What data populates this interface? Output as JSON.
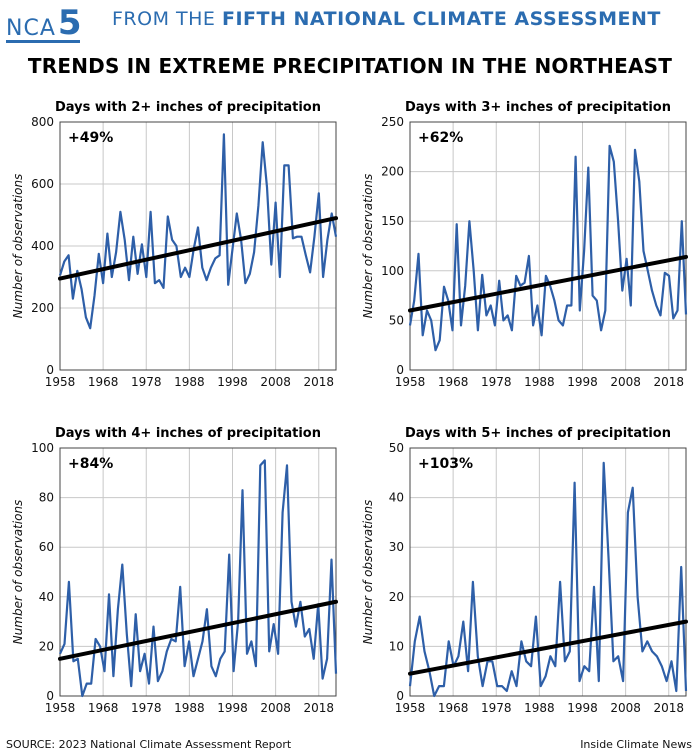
{
  "banner": {
    "logo_text": "NCA",
    "logo_number": "5",
    "title_prefix": "FROM THE ",
    "title_bold": "FIFTH NATIONAL CLIMATE ASSESSMENT"
  },
  "main_title": "TRENDS IN EXTREME PRECIPITATION IN THE NORTHEAST",
  "footer": {
    "source": "SOURCE: 2023 National Climate Assessment Report",
    "credit": "Inside Climate News"
  },
  "colors": {
    "series": "#2e5fa8",
    "trend": "#000000",
    "accent": "#2b6cb0"
  },
  "chart_data": [
    {
      "type": "line",
      "title": "Days with 2+ inches of precipitation",
      "annotation": "+49%",
      "ylabel": "Number of observations",
      "xticks": [
        1958,
        1968,
        1978,
        1988,
        1998,
        2008,
        2018
      ],
      "yticks": [
        0,
        200,
        400,
        600,
        800
      ],
      "xlim": [
        1958,
        2022
      ],
      "ylim": [
        0,
        800
      ],
      "x_start": 1958,
      "values": [
        305,
        350,
        370,
        230,
        320,
        260,
        170,
        135,
        240,
        375,
        280,
        440,
        300,
        380,
        510,
        420,
        290,
        430,
        310,
        405,
        300,
        510,
        280,
        290,
        265,
        495,
        420,
        400,
        300,
        330,
        300,
        390,
        460,
        330,
        290,
        330,
        360,
        370,
        760,
        275,
        390,
        505,
        420,
        280,
        310,
        380,
        530,
        735,
        590,
        340,
        540,
        300,
        660,
        660,
        425,
        430,
        430,
        370,
        315,
        430,
        570,
        300,
        420,
        505,
        430
      ],
      "trend": {
        "start": [
          1958,
          295
        ],
        "end": [
          2022,
          490
        ]
      }
    },
    {
      "type": "line",
      "title": "Days with 3+ inches of precipitation",
      "annotation": "+62%",
      "ylabel": "Number of observations",
      "xticks": [
        1958,
        1968,
        1978,
        1988,
        1998,
        2008,
        2018
      ],
      "yticks": [
        0,
        50,
        100,
        150,
        200,
        250
      ],
      "xlim": [
        1958,
        2022
      ],
      "ylim": [
        0,
        250
      ],
      "x_start": 1958,
      "values": [
        45,
        70,
        117,
        35,
        60,
        50,
        20,
        30,
        84,
        70,
        40,
        147,
        45,
        85,
        150,
        100,
        40,
        96,
        55,
        65,
        45,
        90,
        50,
        55,
        40,
        95,
        85,
        88,
        115,
        45,
        65,
        35,
        95,
        85,
        70,
        50,
        45,
        65,
        65,
        215,
        60,
        120,
        204,
        75,
        70,
        40,
        60,
        226,
        210,
        150,
        80,
        112,
        65,
        222,
        190,
        120,
        100,
        80,
        65,
        55,
        98,
        95,
        52,
        60,
        150,
        56
      ],
      "trend": {
        "start": [
          1958,
          60
        ],
        "end": [
          2022,
          114
        ]
      }
    },
    {
      "type": "line",
      "title": "Days with 4+ inches of precipitation",
      "annotation": "+84%",
      "ylabel": "Number of observations",
      "xticks": [
        1958,
        1968,
        1978,
        1988,
        1998,
        2008,
        2018
      ],
      "yticks": [
        0,
        20,
        40,
        60,
        80,
        100
      ],
      "xlim": [
        1958,
        2022
      ],
      "ylim": [
        0,
        100
      ],
      "x_start": 1958,
      "values": [
        17,
        21,
        46,
        14,
        15,
        0,
        5,
        5,
        23,
        20,
        10,
        41,
        8,
        35,
        53,
        25,
        4,
        33,
        10,
        17,
        5,
        28,
        6,
        10,
        18,
        23,
        22,
        44,
        12,
        22,
        8,
        15,
        22,
        35,
        12,
        8,
        15,
        18,
        57,
        10,
        30,
        83,
        17,
        22,
        12,
        93,
        95,
        18,
        29,
        17,
        74,
        93,
        38,
        28,
        38,
        24,
        27,
        15,
        37,
        7,
        15,
        55,
        9
      ],
      "trend": {
        "start": [
          1958,
          15
        ],
        "end": [
          2022,
          38
        ]
      }
    },
    {
      "type": "line",
      "title": "Days with 5+ inches of precipitation",
      "annotation": "+103%",
      "ylabel": "Number of observations",
      "xticks": [
        1958,
        1968,
        1978,
        1988,
        1998,
        2008,
        2018
      ],
      "yticks": [
        0,
        10,
        20,
        30,
        40,
        50
      ],
      "xlim": [
        1958,
        2022
      ],
      "ylim": [
        0,
        50
      ],
      "x_start": 1958,
      "values": [
        2,
        11,
        16,
        9,
        5,
        0,
        2,
        2,
        11,
        6,
        8,
        15,
        5,
        23,
        8,
        2,
        7,
        7,
        2,
        2,
        1,
        5,
        2,
        11,
        7,
        6,
        16,
        2,
        4,
        8,
        6,
        23,
        7,
        9,
        43,
        3,
        6,
        5,
        22,
        3,
        47,
        28,
        7,
        8,
        3,
        37,
        42,
        20,
        9,
        11,
        9,
        8,
        6,
        3,
        7,
        1,
        26,
        1
      ],
      "trend": {
        "start": [
          1958,
          4.5
        ],
        "end": [
          2022,
          15
        ]
      }
    }
  ]
}
